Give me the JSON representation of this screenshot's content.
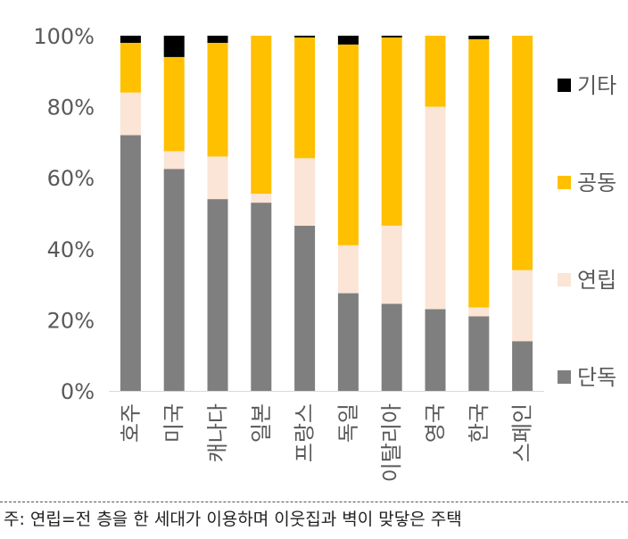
{
  "chart_data": {
    "type": "bar",
    "stacked": true,
    "categories": [
      "호주",
      "미국",
      "캐나다",
      "일본",
      "프랑스",
      "독일",
      "이탈리아",
      "영국",
      "한국",
      "스페인"
    ],
    "series": [
      {
        "name": "단독",
        "color": "#7f7f7f",
        "values": [
          72,
          62.5,
          54,
          53,
          46.5,
          27.5,
          24.5,
          23,
          21,
          14
        ]
      },
      {
        "name": "연립",
        "color": "#fbe5d6",
        "values": [
          12,
          5,
          12,
          2.5,
          19,
          13.5,
          22,
          57,
          2.5,
          20
        ]
      },
      {
        "name": "공동",
        "color": "#ffc000",
        "values": [
          14,
          26.5,
          32,
          44.5,
          34,
          56.5,
          53,
          20,
          75.5,
          66
        ]
      },
      {
        "name": "기타",
        "color": "#000000",
        "values": [
          2,
          6,
          2,
          0,
          0.5,
          2.5,
          0.5,
          0,
          1,
          0
        ]
      }
    ],
    "yticks": [
      "0%",
      "20%",
      "40%",
      "60%",
      "80%",
      "100%"
    ],
    "ylim": [
      0,
      100
    ],
    "legend_position": "right",
    "grid": false
  },
  "footnote": "주: 연립=전 층을 한 세대가 이용하며 이웃집과 벽이 맞닿은 주택"
}
